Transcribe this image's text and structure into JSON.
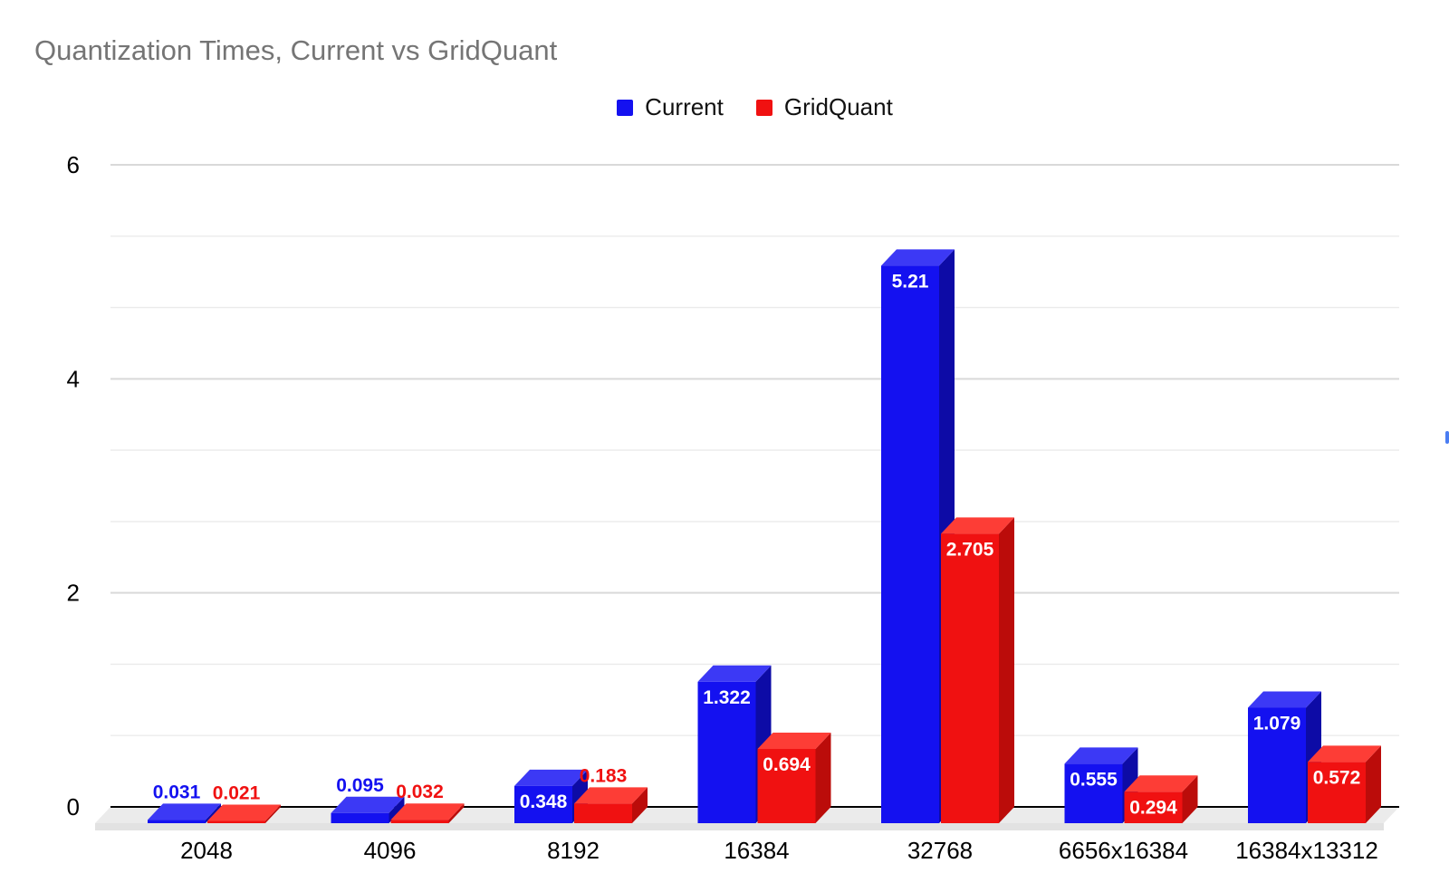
{
  "title": "Quantization Times, Current vs GridQuant",
  "legend": {
    "position": "top",
    "items": [
      {
        "label": "Current",
        "color": "#1411f0"
      },
      {
        "label": "GridQuant",
        "color": "#f01111"
      }
    ]
  },
  "chart_data": {
    "type": "bar",
    "subtype": "3d-column",
    "title": "Quantization Times, Current vs GridQuant",
    "categories": [
      "2048",
      "4096",
      "8192",
      "16384",
      "32768",
      "6656x16384",
      "16384x13312"
    ],
    "series": [
      {
        "name": "Current",
        "color": "#1411f0",
        "values": [
          0.031,
          0.095,
          0.348,
          1.322,
          5.21,
          0.555,
          1.079
        ]
      },
      {
        "name": "GridQuant",
        "color": "#f01111",
        "values": [
          0.021,
          0.032,
          0.183,
          0.694,
          2.705,
          0.294,
          0.572
        ]
      }
    ],
    "show_data_labels": true,
    "xlabel": "",
    "ylabel": "",
    "yticks": [
      0,
      2,
      4,
      6
    ],
    "ylim": [
      0,
      6
    ],
    "minor_gridline_divisions": 3,
    "grid": true,
    "legend_position": "top"
  },
  "colors": {
    "title": "#757575",
    "axis_line": "#000000",
    "tick_label": "#000000",
    "grid_major": "#d9d9d9",
    "grid_minor": "#ebebeb",
    "floor_top": "#ebebeb",
    "floor_edge": "#e2e2e2",
    "inside_label": "#ffffff",
    "current_faces": {
      "front": "#1411f0",
      "top": "#3c39f5",
      "side": "#0d0ba6"
    },
    "gridquant_faces": {
      "front": "#f01111",
      "top": "#fd3d36",
      "side": "#bb0c0a"
    },
    "scroll_indicator": "#4a7df2"
  },
  "scroll_indicator": {
    "visible": true
  }
}
